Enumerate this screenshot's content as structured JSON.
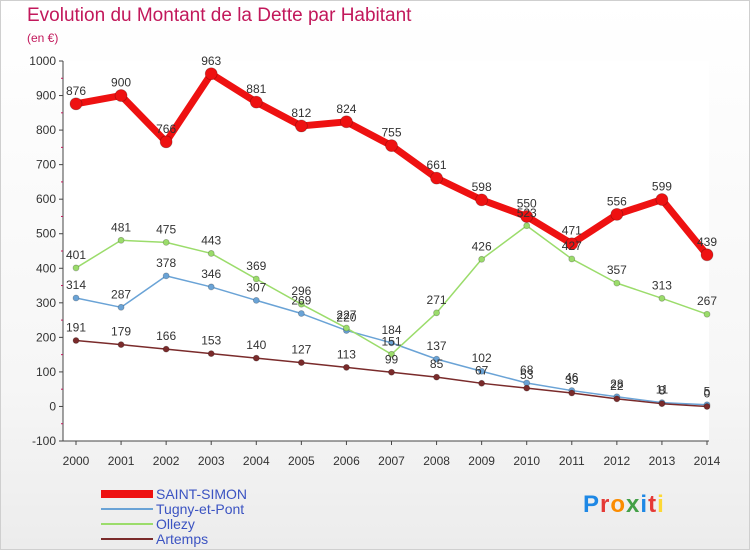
{
  "title": "Evolution du Montant de la Dette par Habitant",
  "unit_label": "(en €)",
  "logo": {
    "text": "Proxiti",
    "colors": [
      "#1e88e5",
      "#e53935",
      "#fb8c00",
      "#43a047",
      "#1e88e5",
      "#e53935",
      "#fdd835"
    ]
  },
  "chart_data": {
    "type": "line",
    "x": [
      "2000",
      "2001",
      "2002",
      "2003",
      "2004",
      "2005",
      "2006",
      "2007",
      "2008",
      "2009",
      "2010",
      "2011",
      "2012",
      "2013",
      "2014"
    ],
    "ylim": [
      -100,
      1000
    ],
    "yticks": [
      -100,
      0,
      100,
      200,
      300,
      400,
      500,
      600,
      700,
      800,
      900,
      1000
    ],
    "grid": false,
    "legend_position": "bottom-left",
    "series": [
      {
        "name": "SAINT-SIMON",
        "color": "#ee1111",
        "width": 7,
        "marker": 6,
        "values": [
          876,
          900,
          766,
          963,
          881,
          812,
          824,
          755,
          661,
          598,
          550,
          471,
          556,
          599,
          439
        ]
      },
      {
        "name": "Tugny-et-Pont",
        "color": "#6aa3d6",
        "width": 1.5,
        "marker": 3,
        "values": [
          314,
          287,
          378,
          346,
          307,
          269,
          220,
          184,
          137,
          102,
          68,
          46,
          28,
          11,
          5
        ]
      },
      {
        "name": "Ollezy",
        "color": "#9bdc6b",
        "width": 1.5,
        "marker": 3,
        "values": [
          401,
          481,
          475,
          443,
          369,
          296,
          227,
          151,
          271,
          426,
          523,
          427,
          357,
          313,
          267
        ]
      },
      {
        "name": "Artemps",
        "color": "#7a2b2b",
        "width": 1.5,
        "marker": 3,
        "values": [
          191,
          179,
          166,
          153,
          140,
          127,
          113,
          99,
          85,
          67,
          53,
          39,
          22,
          8,
          0
        ]
      }
    ]
  }
}
